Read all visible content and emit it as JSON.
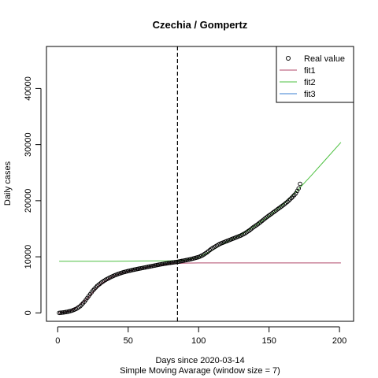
{
  "chart_data": {
    "type": "line",
    "title": "Czechia / Gompertz",
    "xlabel": "Days since 2020-03-14",
    "xlabel_sub": "Simple Moving Avarage (window size = 7)",
    "ylabel": "Daily cases",
    "xlim": [
      -8,
      210
    ],
    "ylim": [
      -1500,
      47500
    ],
    "x_ticks": [
      0,
      50,
      100,
      150,
      200
    ],
    "y_ticks": [
      0,
      10000,
      20000,
      30000,
      40000
    ],
    "vline_x": 85,
    "legend": {
      "position": "top-right",
      "entries": [
        {
          "label": "Real value",
          "kind": "point",
          "color": "#000000"
        },
        {
          "label": "fit1",
          "kind": "line",
          "color": "#B0476A"
        },
        {
          "label": "fit2",
          "kind": "line",
          "color": "#4DC040"
        },
        {
          "label": "fit3",
          "kind": "line",
          "color": "#3A7FD0"
        }
      ]
    },
    "real_value_curve": [
      [
        1,
        0
      ],
      [
        4,
        80
      ],
      [
        7,
        200
      ],
      [
        10,
        400
      ],
      [
        13,
        700
      ],
      [
        16,
        1200
      ],
      [
        19,
        2000
      ],
      [
        22,
        3000
      ],
      [
        25,
        4000
      ],
      [
        28,
        4800
      ],
      [
        31,
        5400
      ],
      [
        34,
        5900
      ],
      [
        37,
        6300
      ],
      [
        40,
        6650
      ],
      [
        43,
        6950
      ],
      [
        46,
        7200
      ],
      [
        49,
        7400
      ],
      [
        52,
        7580
      ],
      [
        55,
        7750
      ],
      [
        58,
        7900
      ],
      [
        61,
        8050
      ],
      [
        64,
        8200
      ],
      [
        67,
        8350
      ],
      [
        70,
        8500
      ],
      [
        73,
        8650
      ],
      [
        76,
        8780
      ],
      [
        79,
        8900
      ],
      [
        82,
        9000
      ],
      [
        85,
        9100
      ],
      [
        88,
        9250
      ],
      [
        91,
        9400
      ],
      [
        94,
        9550
      ],
      [
        97,
        9750
      ],
      [
        100,
        9950
      ],
      [
        103,
        10300
      ],
      [
        106,
        10800
      ],
      [
        109,
        11400
      ],
      [
        112,
        11850
      ],
      [
        115,
        12300
      ],
      [
        118,
        12600
      ],
      [
        121,
        12900
      ],
      [
        124,
        13200
      ],
      [
        127,
        13500
      ],
      [
        130,
        13800
      ],
      [
        133,
        14200
      ],
      [
        136,
        14700
      ],
      [
        139,
        15300
      ],
      [
        142,
        15800
      ],
      [
        145,
        16400
      ],
      [
        148,
        17000
      ],
      [
        151,
        17550
      ],
      [
        154,
        18100
      ],
      [
        157,
        18650
      ],
      [
        160,
        19200
      ],
      [
        163,
        19800
      ],
      [
        166,
        20500
      ],
      [
        169,
        21300
      ],
      [
        171,
        22200
      ],
      [
        172,
        23000
      ]
    ],
    "fit1_curve": [
      [
        1,
        0
      ],
      [
        10,
        400
      ],
      [
        20,
        2300
      ],
      [
        30,
        5100
      ],
      [
        40,
        6650
      ],
      [
        50,
        7450
      ],
      [
        60,
        8000
      ],
      [
        70,
        8450
      ],
      [
        80,
        8750
      ],
      [
        90,
        8870
      ],
      [
        100,
        8900
      ],
      [
        120,
        8900
      ],
      [
        150,
        8900
      ],
      [
        180,
        8900
      ],
      [
        201,
        8900
      ]
    ],
    "fit2_curve": [
      [
        1,
        9200
      ],
      [
        20,
        9200
      ],
      [
        40,
        9200
      ],
      [
        60,
        9250
      ],
      [
        80,
        9300
      ],
      [
        90,
        9400
      ],
      [
        100,
        9900
      ],
      [
        110,
        11200
      ],
      [
        120,
        12700
      ],
      [
        130,
        13900
      ],
      [
        140,
        15500
      ],
      [
        150,
        17300
      ],
      [
        160,
        19300
      ],
      [
        170,
        21800
      ],
      [
        180,
        24500
      ],
      [
        190,
        27300
      ],
      [
        201,
        30400
      ]
    ],
    "fit3_curve": []
  }
}
